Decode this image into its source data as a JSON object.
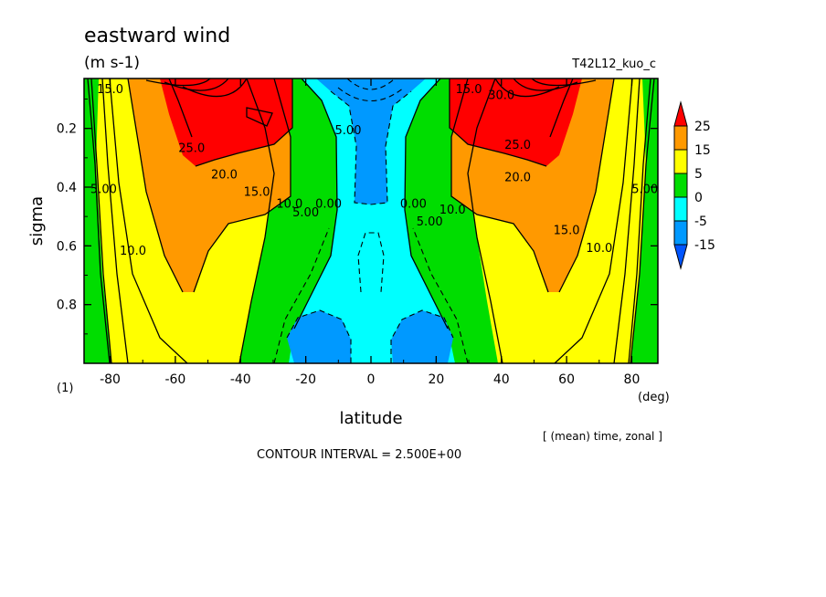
{
  "header": {
    "title": "eastward wind",
    "units": "(m s-1)",
    "run_id": "T42L12_kuo_c"
  },
  "footer": {
    "mean_note": "[ (mean) time, zonal ]",
    "contour_interval": "CONTOUR INTERVAL = 2.500E+00",
    "panel_index": "(1)",
    "x_unit": "(deg)"
  },
  "chart_data": {
    "type": "contour",
    "xlabel": "latitude",
    "ylabel": "sigma",
    "xlim": [
      -88,
      88
    ],
    "ylim": [
      1.0,
      0.03
    ],
    "x_ticks": [
      -80,
      -60,
      -40,
      -20,
      0,
      20,
      40,
      60,
      80
    ],
    "x_tick_labels": [
      "-80",
      "-60",
      "-40",
      "-20",
      "0",
      "20",
      "40",
      "60",
      "80"
    ],
    "y_ticks": [
      0.2,
      0.4,
      0.6,
      0.8
    ],
    "y_tick_labels": [
      "0.2",
      "0.4",
      "0.6",
      "0.8"
    ],
    "colorbar": {
      "labels": [
        "25",
        "15",
        "5",
        "0",
        "-5",
        "-15"
      ],
      "bands": [
        {
          "range": "> 25",
          "color": "#ff0000"
        },
        {
          "range": "15 to 25",
          "color": "#ff9900"
        },
        {
          "range": "5 to 15",
          "color": "#ffff00"
        },
        {
          "range": "0 to 5",
          "color": "#00dd00"
        },
        {
          "range": "-5 to 0",
          "color": "#00ffff"
        },
        {
          "range": "-15 to -5",
          "color": "#0099ff"
        },
        {
          "range": "< -15",
          "color": "#0055ff"
        }
      ]
    },
    "jets": [
      {
        "lat": -35,
        "sigma": 0.12,
        "max": 30
      },
      {
        "lat": 35,
        "sigma": 0.12,
        "max": 30
      }
    ],
    "contour_labels": [
      {
        "text": "15.0",
        "lat": -80,
        "sigma": 0.08
      },
      {
        "text": "25.0",
        "lat": -55,
        "sigma": 0.28
      },
      {
        "text": "20.0",
        "lat": -45,
        "sigma": 0.37
      },
      {
        "text": "15.0",
        "lat": -35,
        "sigma": 0.43
      },
      {
        "text": "10.0",
        "lat": -25,
        "sigma": 0.47
      },
      {
        "text": "5.00",
        "lat": -20,
        "sigma": 0.5
      },
      {
        "text": "0.00",
        "lat": -13,
        "sigma": 0.47
      },
      {
        "text": "5.00",
        "lat": -7,
        "sigma": 0.22
      },
      {
        "text": "5.00",
        "lat": -82,
        "sigma": 0.42
      },
      {
        "text": "10.0",
        "lat": -73,
        "sigma": 0.63
      },
      {
        "text": "15.0",
        "lat": 30,
        "sigma": 0.08
      },
      {
        "text": "30.0",
        "lat": 40,
        "sigma": 0.1
      },
      {
        "text": "25.0",
        "lat": 45,
        "sigma": 0.27
      },
      {
        "text": "20.0",
        "lat": 45,
        "sigma": 0.38
      },
      {
        "text": "0.00",
        "lat": 13,
        "sigma": 0.47
      },
      {
        "text": "5.00",
        "lat": 18,
        "sigma": 0.53
      },
      {
        "text": "10.0",
        "lat": 25,
        "sigma": 0.49
      },
      {
        "text": "15.0",
        "lat": 60,
        "sigma": 0.56
      },
      {
        "text": "10.0",
        "lat": 70,
        "sigma": 0.62
      },
      {
        "text": "5.00",
        "lat": 84,
        "sigma": 0.42
      }
    ]
  }
}
